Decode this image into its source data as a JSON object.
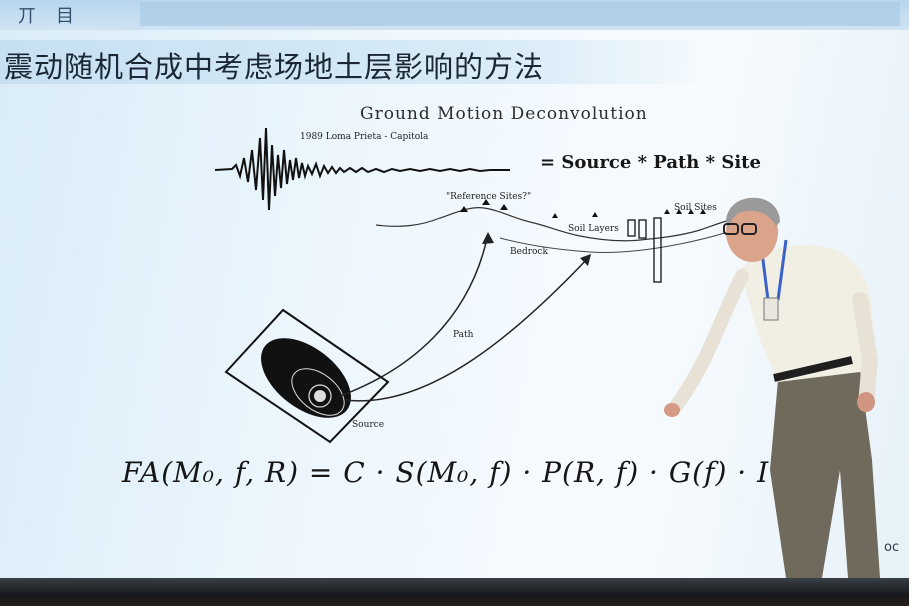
{
  "slide": {
    "top_fragment_left": "丌",
    "top_fragment_right": "目",
    "title": "震动随机合成中考虑场地土层影响的方法",
    "corner_text": "oc"
  },
  "diagram": {
    "title": "Ground Motion Deconvolution",
    "waveform_label": "1989 Loma Prieta - Capitola",
    "equation": "= Source * Path * Site",
    "label_reference_sites": "\"Reference Sites?\"",
    "label_soil_layers": "Soil Layers",
    "label_soil_sites": "Soil Sites",
    "label_bedrock": "Bedrock",
    "label_path": "Path",
    "label_source": "Source"
  },
  "formula": "FA(M₀, f, R) = C · S(M₀, f) · P(R, f) · G(f) · I",
  "colors": {
    "screen_bg": "#eef7fd",
    "title_band": "#c6e0f2",
    "ink": "#151515"
  }
}
